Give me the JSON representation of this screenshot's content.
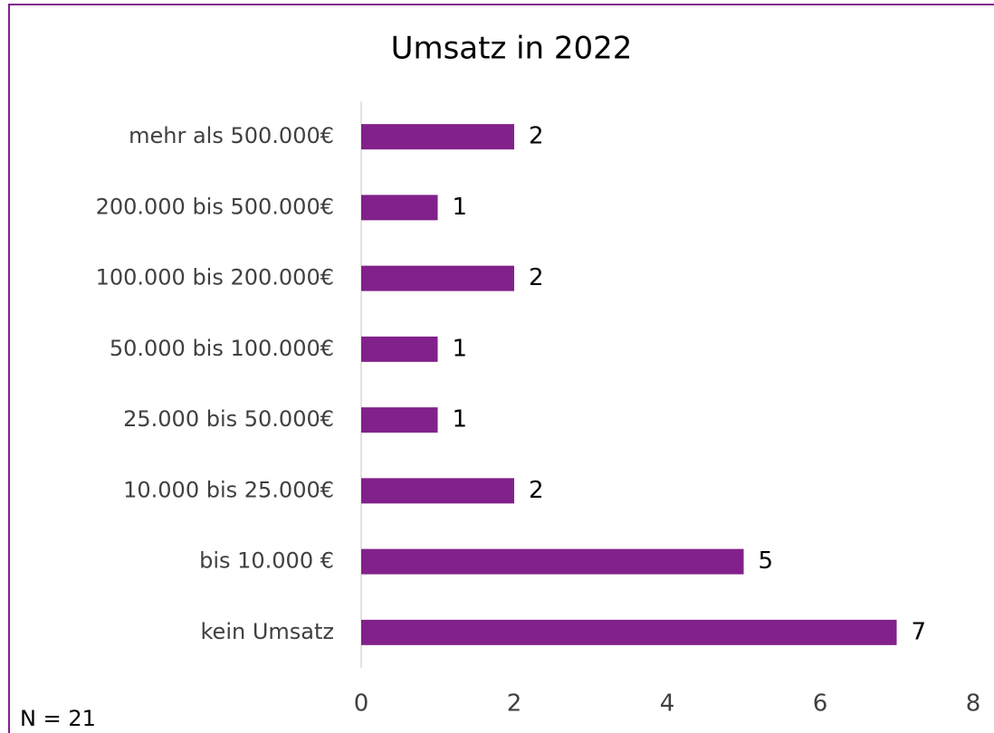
{
  "chart_data": {
    "type": "bar",
    "orientation": "horizontal",
    "title": "Umsatz in 2022",
    "categories": [
      "mehr als 500.000€",
      "200.000 bis 500.000€",
      "100.000 bis 200.000€",
      "50.000 bis 100.000€",
      "25.000 bis 50.000€",
      "10.000 bis 25.000€",
      "bis 10.000 €",
      "kein Umsatz"
    ],
    "values": [
      2,
      1,
      2,
      1,
      1,
      2,
      5,
      7
    ],
    "color": "#82218b",
    "xlim": [
      0,
      8
    ],
    "xticks": [
      0,
      2,
      4,
      6,
      8
    ],
    "grid": false,
    "annotation": "N = 21"
  }
}
